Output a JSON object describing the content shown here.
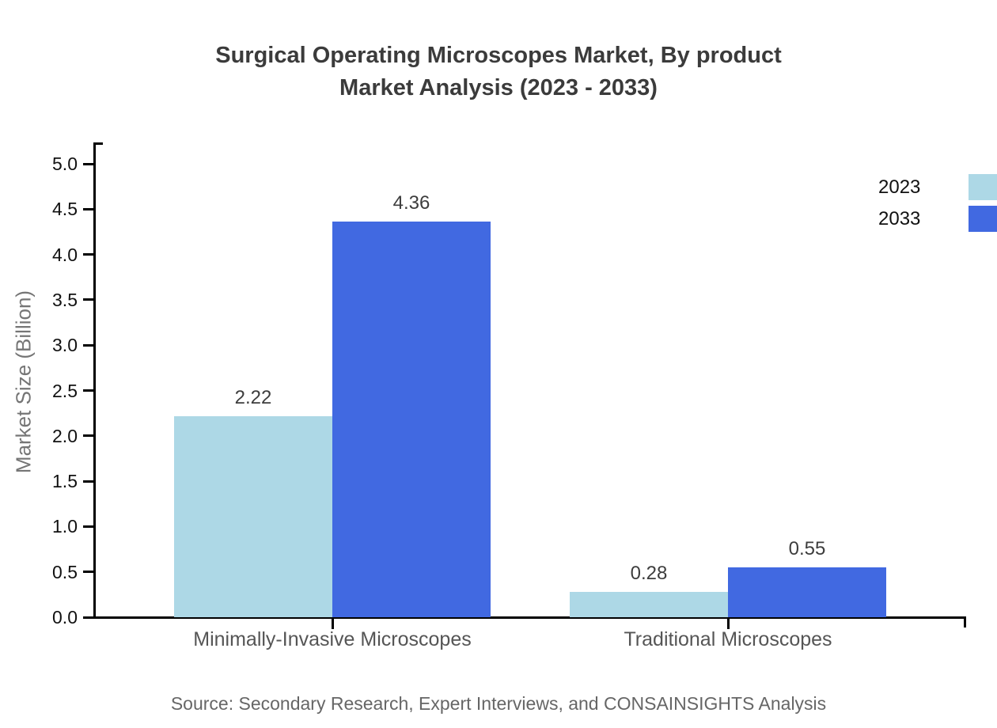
{
  "title": {
    "line1": "Surgical Operating Microscopes Market, By product",
    "line2": "Market Analysis (2023 - 2033)"
  },
  "y_axis": {
    "label": "Market Size (Billion)",
    "ticks": [
      "0.0",
      "0.5",
      "1.0",
      "1.5",
      "2.0",
      "2.5",
      "3.0",
      "3.5",
      "4.0",
      "4.5",
      "5.0"
    ]
  },
  "legend": {
    "items": [
      {
        "label": "2023",
        "color": "#ADD8E6"
      },
      {
        "label": "2033",
        "color": "#4169E1"
      }
    ]
  },
  "source": "Source: Secondary Research, Expert Interviews, and CONSAINSIGHTS Analysis",
  "colors": {
    "series_2023": "#ADD8E6",
    "series_2033": "#4169E1",
    "axis": "#000000",
    "title_text": "#3b3b3b",
    "tick_text": "#111111",
    "category_text": "#555555",
    "value_text": "#3d3d3d",
    "ylabel_text": "#757575",
    "source_text": "#666666",
    "background": "#ffffff"
  },
  "chart_data": {
    "type": "bar",
    "categories": [
      "Minimally-Invasive Microscopes",
      "Traditional Microscopes"
    ],
    "series": [
      {
        "name": "2023",
        "color": "#ADD8E6",
        "values": [
          2.22,
          0.28
        ]
      },
      {
        "name": "2033",
        "color": "#4169E1",
        "values": [
          4.36,
          0.55
        ]
      }
    ],
    "value_labels": [
      "2.22",
      "4.36",
      "0.28",
      "0.55"
    ],
    "title": "Surgical Operating Microscopes Market, By product Market Analysis (2023 - 2033)",
    "xlabel": "",
    "ylabel": "Market Size (Billion)",
    "ylim": [
      0,
      5.25
    ],
    "ytick_step": 0.5,
    "grid": false,
    "legend_position": "upper-right",
    "bar_value_labels_shown": true
  }
}
